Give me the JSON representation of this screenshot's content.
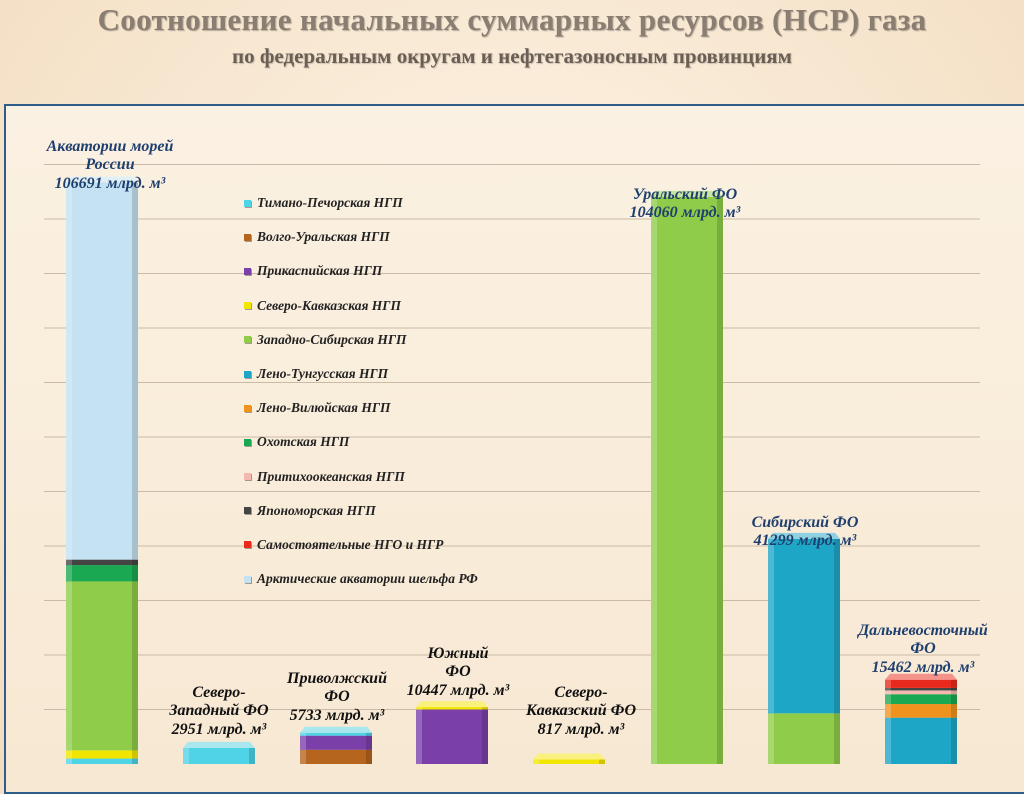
{
  "title": "Соотношение начальных суммарных ресурсов (НСР) газа",
  "subtitle": "по федеральным округам и нефтегазоносным провинциям",
  "legend": [
    {
      "name": "Тимано-Печорская НГП",
      "color": "#4fd3e6"
    },
    {
      "name": "Волго-Уральская НГП",
      "color": "#b5651d"
    },
    {
      "name": "Прикаспийская НГП",
      "color": "#7a3fa8"
    },
    {
      "name": "Северо-Кавказская НГП",
      "color": "#f2e600"
    },
    {
      "name": "Западно-Сибирская НГП",
      "color": "#8fcc4a"
    },
    {
      "name": "Лено-Тунгусская НГП",
      "color": "#1ea6c6"
    },
    {
      "name": "Лено-Вилюйская НГП",
      "color": "#f0931e"
    },
    {
      "name": "Охотская НГП",
      "color": "#1aa852"
    },
    {
      "name": "Притихоокеанская НГП",
      "color": "#f5b8b0"
    },
    {
      "name": "Япономорская НГП",
      "color": "#444444"
    },
    {
      "name": "Самостоятельные НГО и НГР",
      "color": "#e8291c"
    },
    {
      "name": "Арктические акватории шельфа РФ",
      "color": "#c4e2f2"
    }
  ],
  "chart_data": {
    "type": "bar",
    "stacked": true,
    "ylim": [
      0,
      120000
    ],
    "categories": [
      {
        "name_lines": [
          "Акватории морей",
          "России"
        ],
        "total_label": "106691 млрд. м³",
        "total": 106691,
        "segments": [
          {
            "series": "Тимано-Печорская НГП",
            "value": 1000
          },
          {
            "series": "Северо-Кавказская НГП",
            "value": 1500
          },
          {
            "series": "Западно-Сибирская НГП",
            "value": 31000
          },
          {
            "series": "Охотская НГП",
            "value": 3000
          },
          {
            "series": "Япономорская НГП",
            "value": 1000
          },
          {
            "series": "Арктические акватории шельфа РФ",
            "value": 69191
          }
        ]
      },
      {
        "name_lines": [
          "Северо-",
          "Западный ФО"
        ],
        "total_label": "2951 млрд. м³",
        "total": 2951,
        "segments": [
          {
            "series": "Тимано-Печорская НГП",
            "value": 2951
          }
        ]
      },
      {
        "name_lines": [
          "Приволжский",
          "ФО"
        ],
        "total_label": "5733 млрд. м³",
        "total": 5733,
        "segments": [
          {
            "series": "Волго-Уральская НГП",
            "value": 2600
          },
          {
            "series": "Прикаспийская НГП",
            "value": 2600
          },
          {
            "series": "Тимано-Печорская НГП",
            "value": 533
          }
        ]
      },
      {
        "name_lines": [
          "Южный",
          "ФО"
        ],
        "total_label": "10447 млрд. м³",
        "total": 10447,
        "segments": [
          {
            "series": "Прикаспийская НГП",
            "value": 10000
          },
          {
            "series": "Северо-Кавказская НГП",
            "value": 447
          }
        ]
      },
      {
        "name_lines": [
          "Северо-",
          "Кавказский ФО"
        ],
        "total_label": "817 млрд. м³",
        "total": 817,
        "segments": [
          {
            "series": "Северо-Кавказская НГП",
            "value": 817
          }
        ]
      },
      {
        "name_lines": [
          "Уральский ФО"
        ],
        "total_label": "104060 млрд. м³",
        "total": 104060,
        "segments": [
          {
            "series": "Западно-Сибирская НГП",
            "value": 104060
          }
        ]
      },
      {
        "name_lines": [
          "Сибирский ФО"
        ],
        "total_label": "41299 млрд. м³",
        "total": 41299,
        "segments": [
          {
            "series": "Западно-Сибирская НГП",
            "value": 9299
          },
          {
            "series": "Лено-Тунгусская НГП",
            "value": 32000
          }
        ]
      },
      {
        "name_lines": [
          "Дальневосточный",
          "ФО"
        ],
        "total_label": "15462 млрд. м³",
        "total": 15462,
        "segments": [
          {
            "series": "Лено-Тунгусская НГП",
            "value": 8500
          },
          {
            "series": "Лено-Вилюйская НГП",
            "value": 2500
          },
          {
            "series": "Охотская НГП",
            "value": 1800
          },
          {
            "series": "Притихоокеанская НГП",
            "value": 700
          },
          {
            "series": "Япономорская НГП",
            "value": 462
          },
          {
            "series": "Самостоятельные НГО и НГР",
            "value": 1500
          }
        ]
      }
    ]
  }
}
